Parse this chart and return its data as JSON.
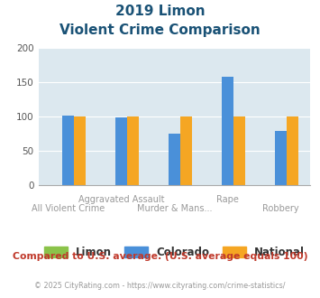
{
  "title_line1": "2019 Limon",
  "title_line2": "Violent Crime Comparison",
  "categories": [
    "All Violent Crime",
    "Aggravated Assault",
    "Murder & Mans...",
    "Rape",
    "Robbery"
  ],
  "limon_values": [
    0,
    0,
    0,
    0,
    0
  ],
  "colorado_values": [
    101,
    98,
    75,
    158,
    78
  ],
  "national_values": [
    100,
    100,
    100,
    100,
    100
  ],
  "limon_color": "#8bc34a",
  "colorado_color": "#4a90d9",
  "national_color": "#f5a623",
  "background_color": "#dce8ef",
  "ylim": [
    0,
    200
  ],
  "yticks": [
    0,
    50,
    100,
    150,
    200
  ],
  "footnote": "Compared to U.S. average. (U.S. average equals 100)",
  "copyright": "© 2025 CityRating.com - https://www.cityrating.com/crime-statistics/",
  "title_color": "#1a5276",
  "footnote_color": "#c0392b",
  "copyright_color": "#999999",
  "legend_labels": [
    "Limon",
    "Colorado",
    "National"
  ],
  "legend_text_color": "#333333",
  "xtick_color": "#999999"
}
